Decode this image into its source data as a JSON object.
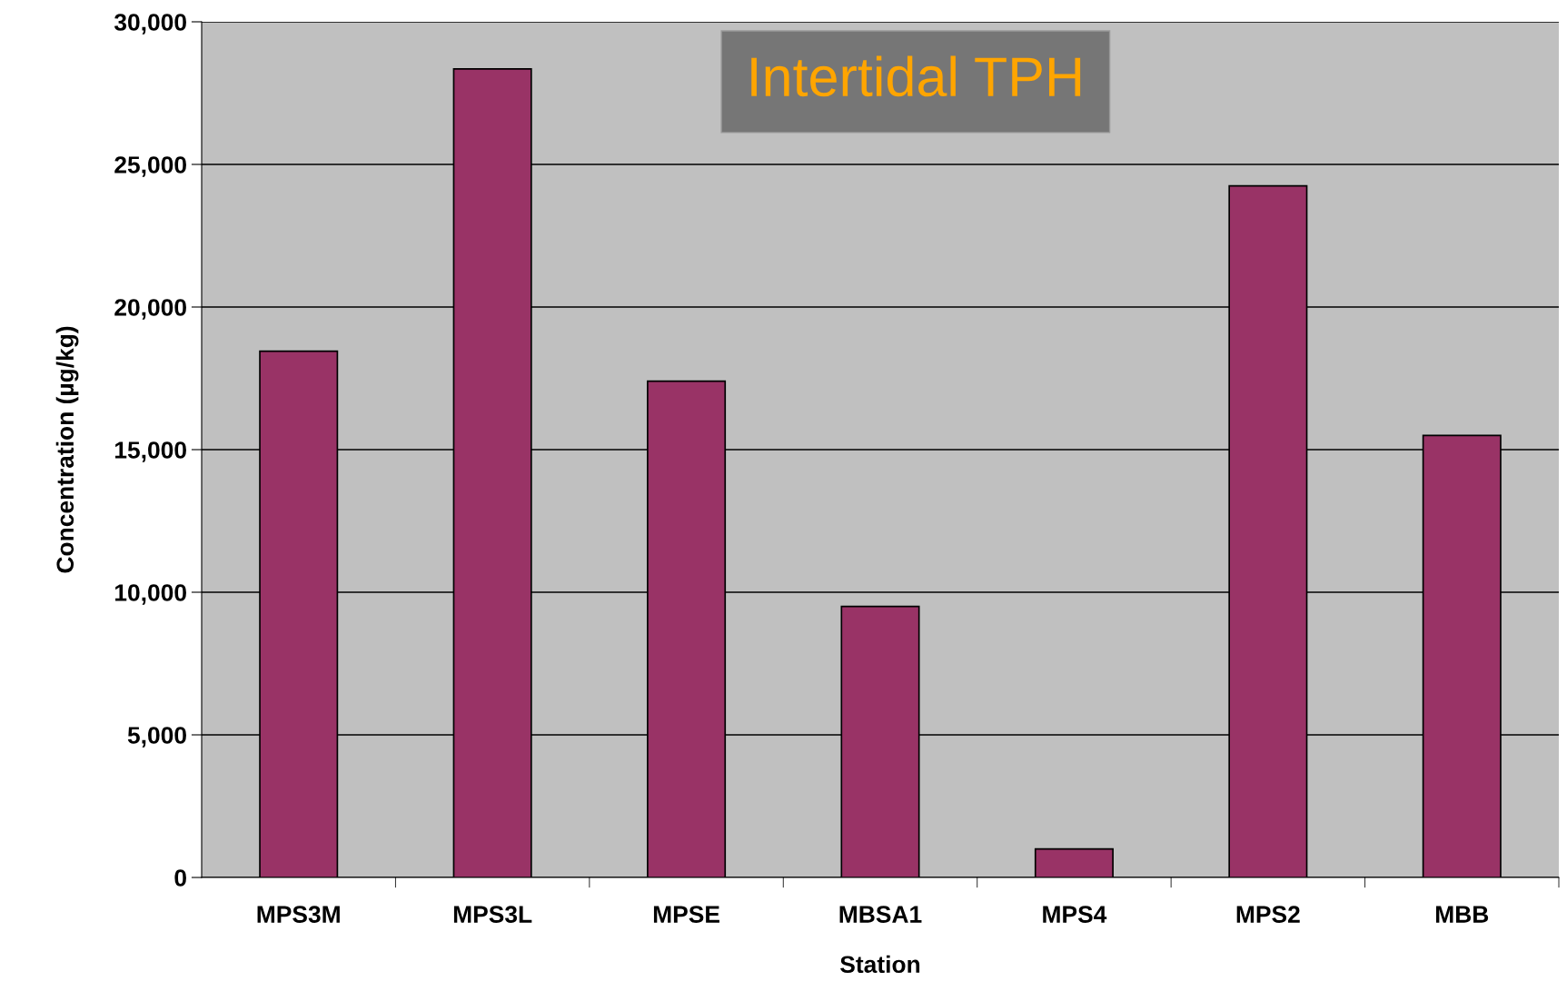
{
  "chart_data": {
    "type": "bar",
    "title": "Intertidal TPH",
    "xlabel": "Station",
    "ylabel": "Concentration (µg/kg)",
    "categories": [
      "MPS3M",
      "MPS3L",
      "MPSE",
      "MBSA1",
      "MPS4",
      "MPS2",
      "MBB"
    ],
    "values": [
      18450,
      28350,
      17400,
      9500,
      1000,
      24250,
      15500
    ],
    "color": "#993366",
    "ylim": [
      0,
      30000
    ],
    "yticks": [
      {
        "value": 0,
        "label": "0"
      },
      {
        "value": 5000,
        "label": "5,000"
      },
      {
        "value": 10000,
        "label": "10,000"
      },
      {
        "value": 15000,
        "label": "15,000"
      },
      {
        "value": 20000,
        "label": "20,000"
      },
      {
        "value": 25000,
        "label": "25,000"
      },
      {
        "value": 30000,
        "label": "30,000"
      }
    ],
    "grid": "y",
    "legend": false
  }
}
